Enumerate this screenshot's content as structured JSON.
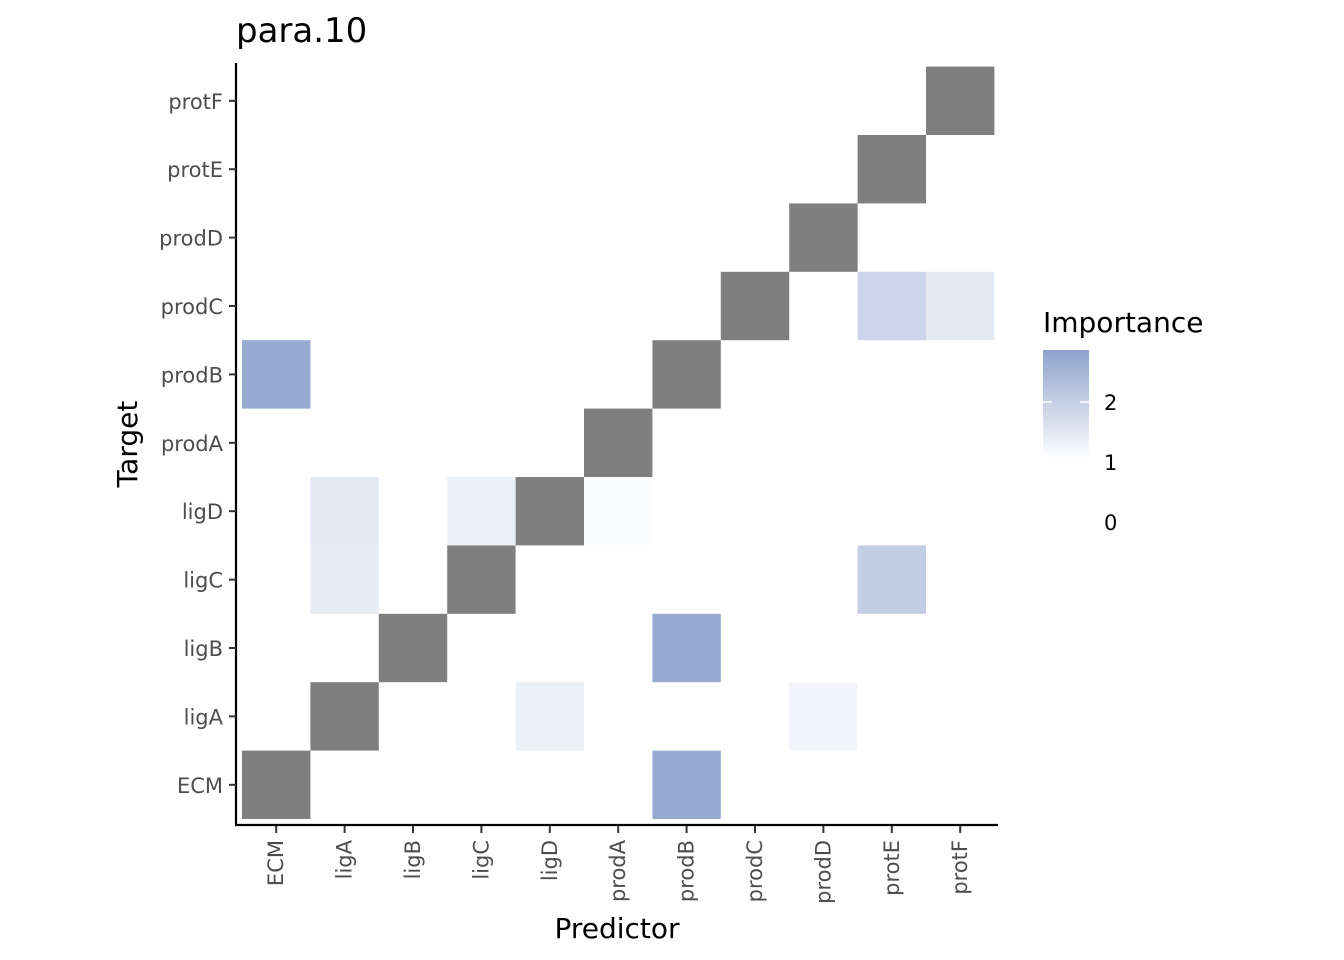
{
  "chart_data": {
    "type": "heatmap",
    "title": "para.10",
    "xlabel": "Predictor",
    "ylabel": "Target",
    "x_categories": [
      "ECM",
      "ligA",
      "ligB",
      "ligC",
      "ligD",
      "prodA",
      "prodB",
      "prodC",
      "prodD",
      "protE",
      "protF"
    ],
    "y_categories": [
      "ECM",
      "ligA",
      "ligB",
      "ligC",
      "ligD",
      "prodA",
      "prodB",
      "prodC",
      "prodD",
      "protE",
      "protF"
    ],
    "diagonal_color": "#7f7f7f",
    "cells": [
      {
        "x": "ligA",
        "y": "ECM",
        "value": null
      },
      {
        "x": "prodB",
        "y": "ECM",
        "value": 2.6
      },
      {
        "x": "ligD",
        "y": "ligA",
        "value": 0.5
      },
      {
        "x": "prodD",
        "y": "ligA",
        "value": 0.3
      },
      {
        "x": "prodB",
        "y": "ligB",
        "value": 2.6
      },
      {
        "x": "ligA",
        "y": "ligC",
        "value": 0.6
      },
      {
        "x": "protE",
        "y": "ligC",
        "value": 1.5
      },
      {
        "x": "ligA",
        "y": "ligD",
        "value": 0.7
      },
      {
        "x": "ligC",
        "y": "ligD",
        "value": 0.5
      },
      {
        "x": "prodA",
        "y": "ligD",
        "value": 0.1
      },
      {
        "x": "ECM",
        "y": "prodB",
        "value": 2.6
      },
      {
        "x": "protE",
        "y": "prodC",
        "value": 1.3
      },
      {
        "x": "protF",
        "y": "prodC",
        "value": 0.7
      }
    ],
    "legend": {
      "title": "Importance",
      "ticks": [
        0,
        1,
        2
      ],
      "range": [
        0,
        2.8
      ],
      "low_color": "#ffffff",
      "high_color": "#8fa3cd",
      "placement": "right"
    },
    "grid": false
  }
}
